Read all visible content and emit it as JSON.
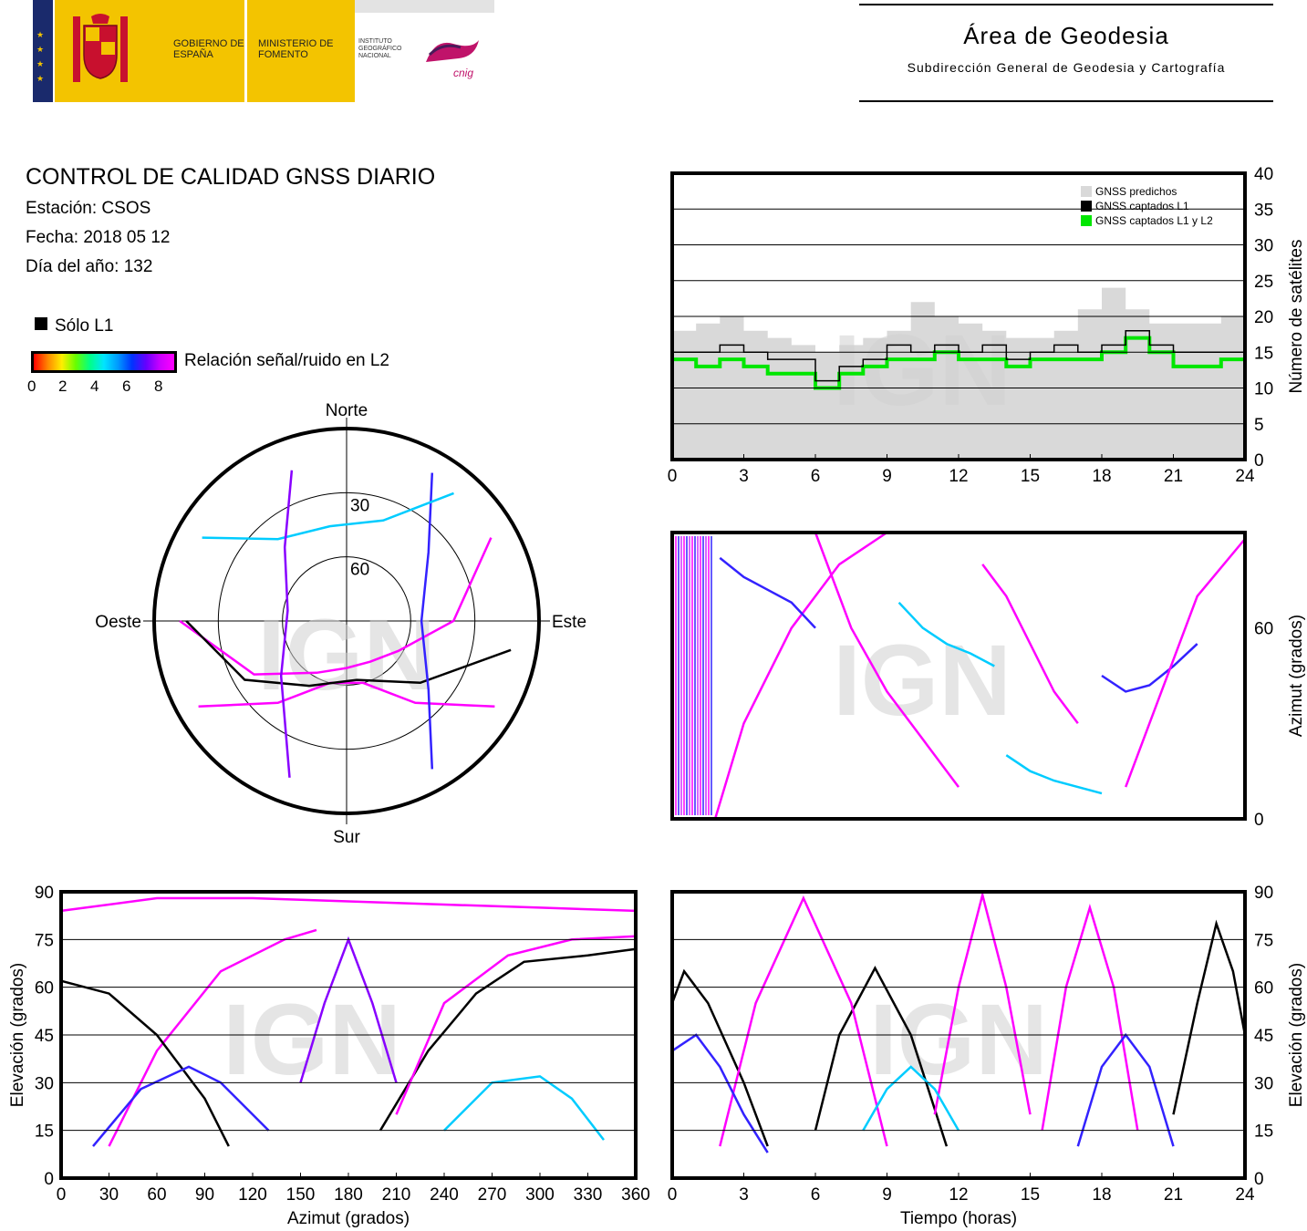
{
  "logos": {
    "gobierno": "GOBIERNO DE ESPAÑA",
    "ministerio": "MINISTERIO DE FOMENTO",
    "instituto": "INSTITUTO GEOGRÁFICO NACIONAL",
    "cnig": "cnig"
  },
  "area": {
    "title": "Área de Geodesia",
    "subtitle": "Subdirección General de Geodesia y Cartografía"
  },
  "header": {
    "title": "CONTROL DE CALIDAD GNSS DIARIO",
    "station": "Estación: CSOS",
    "date": "Fecha: 2018 05 12",
    "doy": "Día del año: 132"
  },
  "legend": {
    "solo_l1": "Sólo L1",
    "snr_label": "Relación señal/ruido en L2",
    "snr_ticks": [
      "0",
      "2",
      "4",
      "6",
      "8"
    ]
  },
  "colors": {
    "predicted": "#d9d9d9",
    "l1": "#000000",
    "l1l2": "#00e600",
    "snr_high": "#ff00ff"
  },
  "watermark": "IGN",
  "chart_data": [
    {
      "id": "skyplot",
      "type": "scatter",
      "projection": "polar",
      "directions": {
        "north": "Norte",
        "south": "Sur",
        "east": "Este",
        "west": "Oeste"
      },
      "ring_labels": [
        "30",
        "60"
      ],
      "elevation_rings": [
        30,
        60
      ],
      "tracks": [
        {
          "color": "#ff00ff",
          "az_el": [
            [
              60,
              12
            ],
            [
              90,
              40
            ],
            [
              120,
              62
            ],
            [
              150,
              68
            ],
            [
              180,
              68
            ],
            [
              210,
              62
            ],
            [
              240,
              40
            ],
            [
              270,
              12
            ]
          ]
        },
        {
          "color": "#ff00ff",
          "az_el": [
            [
              120,
              10
            ],
            [
              140,
              40
            ],
            [
              165,
              60
            ],
            [
              195,
              60
            ],
            [
              220,
              40
            ],
            [
              240,
              10
            ]
          ]
        },
        {
          "color": "#000000",
          "az_el": [
            [
              100,
              12
            ],
            [
              130,
              45
            ],
            [
              170,
              62
            ],
            [
              210,
              55
            ],
            [
              240,
              35
            ],
            [
              270,
              15
            ]
          ]
        },
        {
          "color": "#3322ff",
          "az_el": [
            [
              30,
              10
            ],
            [
              50,
              40
            ],
            [
              90,
              55
            ],
            [
              130,
              40
            ],
            [
              150,
              10
            ]
          ]
        },
        {
          "color": "#00ccff",
          "az_el": [
            [
              300,
              12
            ],
            [
              320,
              40
            ],
            [
              350,
              45
            ],
            [
              20,
              40
            ],
            [
              40,
              12
            ]
          ]
        },
        {
          "color": "#8800ff",
          "az_el": [
            [
              200,
              12
            ],
            [
              230,
              50
            ],
            [
              280,
              62
            ],
            [
              320,
              45
            ],
            [
              340,
              15
            ]
          ]
        }
      ]
    },
    {
      "id": "satellites",
      "type": "area",
      "xlabel": "",
      "ylabel": "Número de satélites",
      "xlim": [
        0,
        24
      ],
      "ylim": [
        0,
        40
      ],
      "xticks": [
        "0",
        "3",
        "6",
        "9",
        "12",
        "15",
        "18",
        "21",
        "24"
      ],
      "yticks": [
        "0",
        "5",
        "10",
        "15",
        "20",
        "25",
        "30",
        "35",
        "40"
      ],
      "legend": [
        "GNSS predichos",
        "GNSS captados L1",
        "GNSS captados L1 y L2"
      ],
      "legend_position": "top-right",
      "series": [
        {
          "name": "GNSS predichos",
          "x": [
            0,
            1,
            2,
            3,
            4,
            5,
            6,
            7,
            8,
            9,
            10,
            11,
            12,
            13,
            14,
            15,
            16,
            17,
            18,
            19,
            20,
            21,
            22,
            23,
            24
          ],
          "values": [
            18,
            19,
            20,
            18,
            17,
            16,
            15,
            16,
            17,
            18,
            22,
            20,
            19,
            18,
            17,
            17,
            18,
            21,
            24,
            21,
            19,
            19,
            19,
            20,
            20
          ]
        },
        {
          "name": "GNSS captados L1",
          "x": [
            0,
            1,
            2,
            3,
            4,
            5,
            6,
            7,
            8,
            9,
            10,
            11,
            12,
            13,
            14,
            15,
            16,
            17,
            18,
            19,
            20,
            21,
            22,
            23,
            24
          ],
          "values": [
            15,
            15,
            16,
            15,
            14,
            14,
            11,
            13,
            14,
            16,
            15,
            16,
            15,
            16,
            14,
            15,
            16,
            15,
            16,
            18,
            16,
            15,
            15,
            15,
            15
          ]
        },
        {
          "name": "GNSS captados L1 y L2",
          "x": [
            0,
            1,
            2,
            3,
            4,
            5,
            6,
            7,
            8,
            9,
            10,
            11,
            12,
            13,
            14,
            15,
            16,
            17,
            18,
            19,
            20,
            21,
            22,
            23,
            24
          ],
          "values": [
            14,
            13,
            14,
            13,
            12,
            12,
            10,
            12,
            13,
            14,
            14,
            15,
            14,
            14,
            13,
            14,
            14,
            14,
            15,
            17,
            15,
            13,
            13,
            14,
            14
          ]
        }
      ]
    },
    {
      "id": "azimuth_time",
      "type": "scatter",
      "xlabel": "",
      "ylabel": "Azimut (grados)",
      "yticks": [
        "0",
        "60"
      ],
      "ylim": [
        0,
        90
      ],
      "tracks": [
        {
          "color": "#ff00ff",
          "x": [
            1.8,
            3,
            5,
            7,
            9
          ],
          "values": [
            0,
            30,
            60,
            80,
            90
          ]
        },
        {
          "color": "#ff00ff",
          "x": [
            6,
            7.5,
            9,
            10.5,
            12
          ],
          "values": [
            90,
            60,
            40,
            25,
            10
          ]
        },
        {
          "color": "#3322ff",
          "x": [
            2,
            3,
            4,
            5,
            6
          ],
          "values": [
            82,
            76,
            72,
            68,
            60
          ]
        },
        {
          "color": "#00ccff",
          "x": [
            9.5,
            10.5,
            11.5,
            12.5,
            13.5
          ],
          "values": [
            68,
            60,
            55,
            52,
            48
          ]
        },
        {
          "color": "#ff00ff",
          "x": [
            13,
            14,
            15,
            16,
            17
          ],
          "values": [
            80,
            70,
            55,
            40,
            30
          ]
        },
        {
          "color": "#3322ff",
          "x": [
            18,
            19,
            20,
            21,
            22
          ],
          "values": [
            45,
            40,
            42,
            48,
            55
          ]
        },
        {
          "color": "#ff00ff",
          "x": [
            19,
            20,
            21,
            22,
            24
          ],
          "values": [
            10,
            30,
            50,
            70,
            88
          ]
        },
        {
          "color": "#00ccff",
          "x": [
            14,
            15,
            16,
            17,
            18
          ],
          "values": [
            20,
            15,
            12,
            10,
            8
          ]
        }
      ]
    },
    {
      "id": "elevation_azimuth",
      "type": "scatter",
      "xlabel": "Azimut (grados)",
      "ylabel": "Elevación (grados)",
      "xlim": [
        0,
        360
      ],
      "ylim": [
        0,
        90
      ],
      "xticks": [
        "0",
        "30",
        "60",
        "90",
        "120",
        "150",
        "180",
        "210",
        "240",
        "270",
        "300",
        "330",
        "360"
      ],
      "yticks": [
        "0",
        "15",
        "30",
        "45",
        "60",
        "75",
        "90"
      ],
      "tracks": [
        {
          "color": "#ff00ff",
          "x": [
            0,
            60,
            120,
            180,
            240,
            300,
            360
          ],
          "values": [
            84,
            88,
            88,
            87,
            86,
            85,
            84
          ]
        },
        {
          "color": "#ff00ff",
          "x": [
            30,
            60,
            100,
            140,
            160
          ],
          "values": [
            10,
            40,
            65,
            75,
            78
          ]
        },
        {
          "color": "#000000",
          "x": [
            0,
            30,
            60,
            90,
            105
          ],
          "values": [
            62,
            58,
            45,
            25,
            10
          ]
        },
        {
          "color": "#3322ff",
          "x": [
            20,
            50,
            80,
            100,
            130
          ],
          "values": [
            10,
            28,
            35,
            30,
            15
          ]
        },
        {
          "color": "#000000",
          "x": [
            200,
            230,
            260,
            290,
            330,
            360
          ],
          "values": [
            15,
            40,
            58,
            68,
            70,
            72
          ]
        },
        {
          "color": "#ff00ff",
          "x": [
            210,
            240,
            280,
            320,
            360
          ],
          "values": [
            20,
            55,
            70,
            75,
            76
          ]
        },
        {
          "color": "#00ccff",
          "x": [
            240,
            270,
            300,
            320,
            340
          ],
          "values": [
            15,
            30,
            32,
            25,
            12
          ]
        },
        {
          "color": "#8800ff",
          "x": [
            150,
            165,
            180,
            195,
            210
          ],
          "values": [
            30,
            55,
            75,
            55,
            30
          ]
        }
      ]
    },
    {
      "id": "elevation_time",
      "type": "scatter",
      "xlabel": "Tiempo (horas)",
      "ylabel": "Elevación (grados)",
      "xlim": [
        0,
        24
      ],
      "ylim": [
        0,
        90
      ],
      "xticks": [
        "0",
        "3",
        "6",
        "9",
        "12",
        "15",
        "18",
        "21",
        "24"
      ],
      "yticks": [
        "0",
        "15",
        "30",
        "45",
        "60",
        "75",
        "90"
      ],
      "tracks": [
        {
          "color": "#000000",
          "x": [
            0,
            0.5,
            1.5,
            3,
            4
          ],
          "values": [
            55,
            65,
            55,
            30,
            10
          ]
        },
        {
          "color": "#000000",
          "x": [
            6,
            7,
            8.5,
            10,
            11.5
          ],
          "values": [
            15,
            45,
            66,
            45,
            10
          ]
        },
        {
          "color": "#000000",
          "x": [
            21,
            22,
            22.8,
            23.5,
            24
          ],
          "values": [
            20,
            55,
            80,
            65,
            45
          ]
        },
        {
          "color": "#ff00ff",
          "x": [
            2,
            3.5,
            5.5,
            7.5,
            9
          ],
          "values": [
            10,
            55,
            88,
            55,
            10
          ]
        },
        {
          "color": "#ff00ff",
          "x": [
            11,
            12,
            13,
            14,
            15
          ],
          "values": [
            20,
            60,
            89,
            60,
            20
          ]
        },
        {
          "color": "#ff00ff",
          "x": [
            15.5,
            16.5,
            17.5,
            18.5,
            19.5
          ],
          "values": [
            15,
            60,
            85,
            60,
            15
          ]
        },
        {
          "color": "#3322ff",
          "x": [
            0,
            1,
            2,
            3,
            4
          ],
          "values": [
            40,
            45,
            35,
            20,
            8
          ]
        },
        {
          "color": "#00ccff",
          "x": [
            8,
            9,
            10,
            11,
            12
          ],
          "values": [
            15,
            28,
            35,
            28,
            15
          ]
        },
        {
          "color": "#3322ff",
          "x": [
            17,
            18,
            19,
            20,
            21
          ],
          "values": [
            10,
            35,
            45,
            35,
            10
          ]
        }
      ]
    }
  ]
}
